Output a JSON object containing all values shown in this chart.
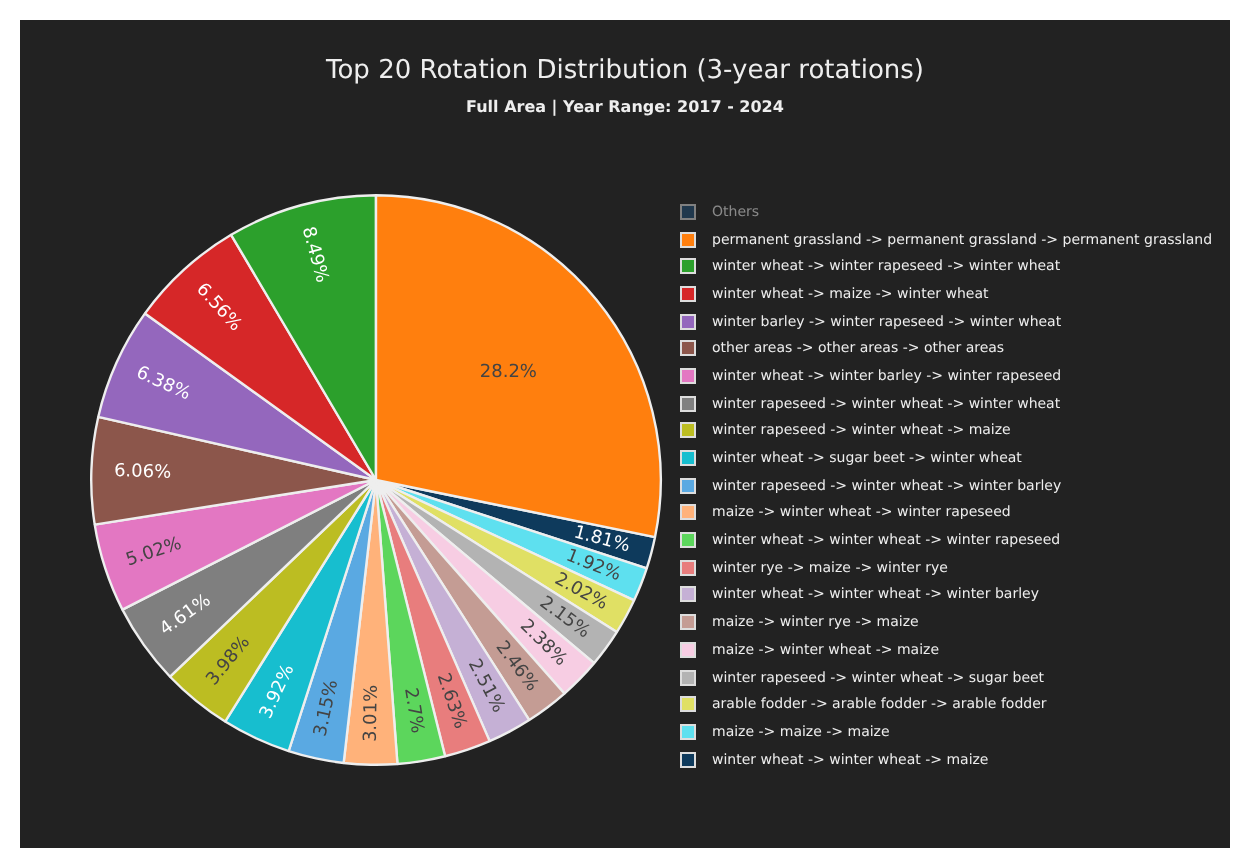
{
  "chart_data": {
    "type": "pie",
    "title": "Top 20 Rotation Distribution (3-year rotations)",
    "subtitle": "Full Area | Year Range: 2017 - 2024",
    "legend": "right",
    "categories": [
      "Others",
      "permanent grassland -> permanent grassland -> permanent grassland",
      "winter wheat -> winter rapeseed -> winter wheat",
      "winter wheat -> maize -> winter wheat",
      "winter barley -> winter rapeseed -> winter wheat",
      "other areas -> other areas -> other areas",
      "winter wheat -> winter barley -> winter rapeseed",
      "winter rapeseed -> winter wheat -> winter wheat",
      "winter rapeseed -> winter wheat -> maize",
      "winter wheat -> sugar beet -> winter wheat",
      "winter rapeseed -> winter wheat -> winter barley",
      "maize -> winter wheat -> winter rapeseed",
      "winter wheat -> winter wheat -> winter rapeseed",
      "winter rye -> maize -> winter rye",
      "winter wheat -> winter wheat -> winter barley",
      "maize -> winter rye -> maize",
      "maize -> winter wheat -> maize",
      "winter rapeseed -> winter wheat -> sugar beet",
      "arable fodder -> arable fodder -> arable fodder",
      "maize -> maize -> maize",
      "winter wheat -> winter wheat -> maize"
    ],
    "values": [
      null,
      28.2,
      8.49,
      6.56,
      6.38,
      6.06,
      5.02,
      4.61,
      3.98,
      3.92,
      3.15,
      3.01,
      2.7,
      2.63,
      2.51,
      2.46,
      2.38,
      2.15,
      2.02,
      1.92,
      1.81
    ],
    "value_labels": [
      null,
      "28.2%",
      "8.49%",
      "6.56%",
      "6.38%",
      "6.06%",
      "5.02%",
      "4.61%",
      "3.98%",
      "3.92%",
      "3.15%",
      "3.01%",
      "2.7%",
      "2.63%",
      "2.51%",
      "2.46%",
      "2.38%",
      "2.15%",
      "2.02%",
      "1.92%",
      "1.81%"
    ],
    "colors": [
      "#1f4e79",
      "#ff7f0e",
      "#2ca02c",
      "#d62728",
      "#9467bd",
      "#8c564b",
      "#e377c2",
      "#7f7f7f",
      "#bcbd22",
      "#17becf",
      "#5aa9e2",
      "#ffb27a",
      "#5cd65c",
      "#e87d7d",
      "#c5b0d5",
      "#c49c94",
      "#f7cde3",
      "#b3b3b3",
      "#e0e064",
      "#5ee0ef",
      "#0e3a5c"
    ]
  }
}
